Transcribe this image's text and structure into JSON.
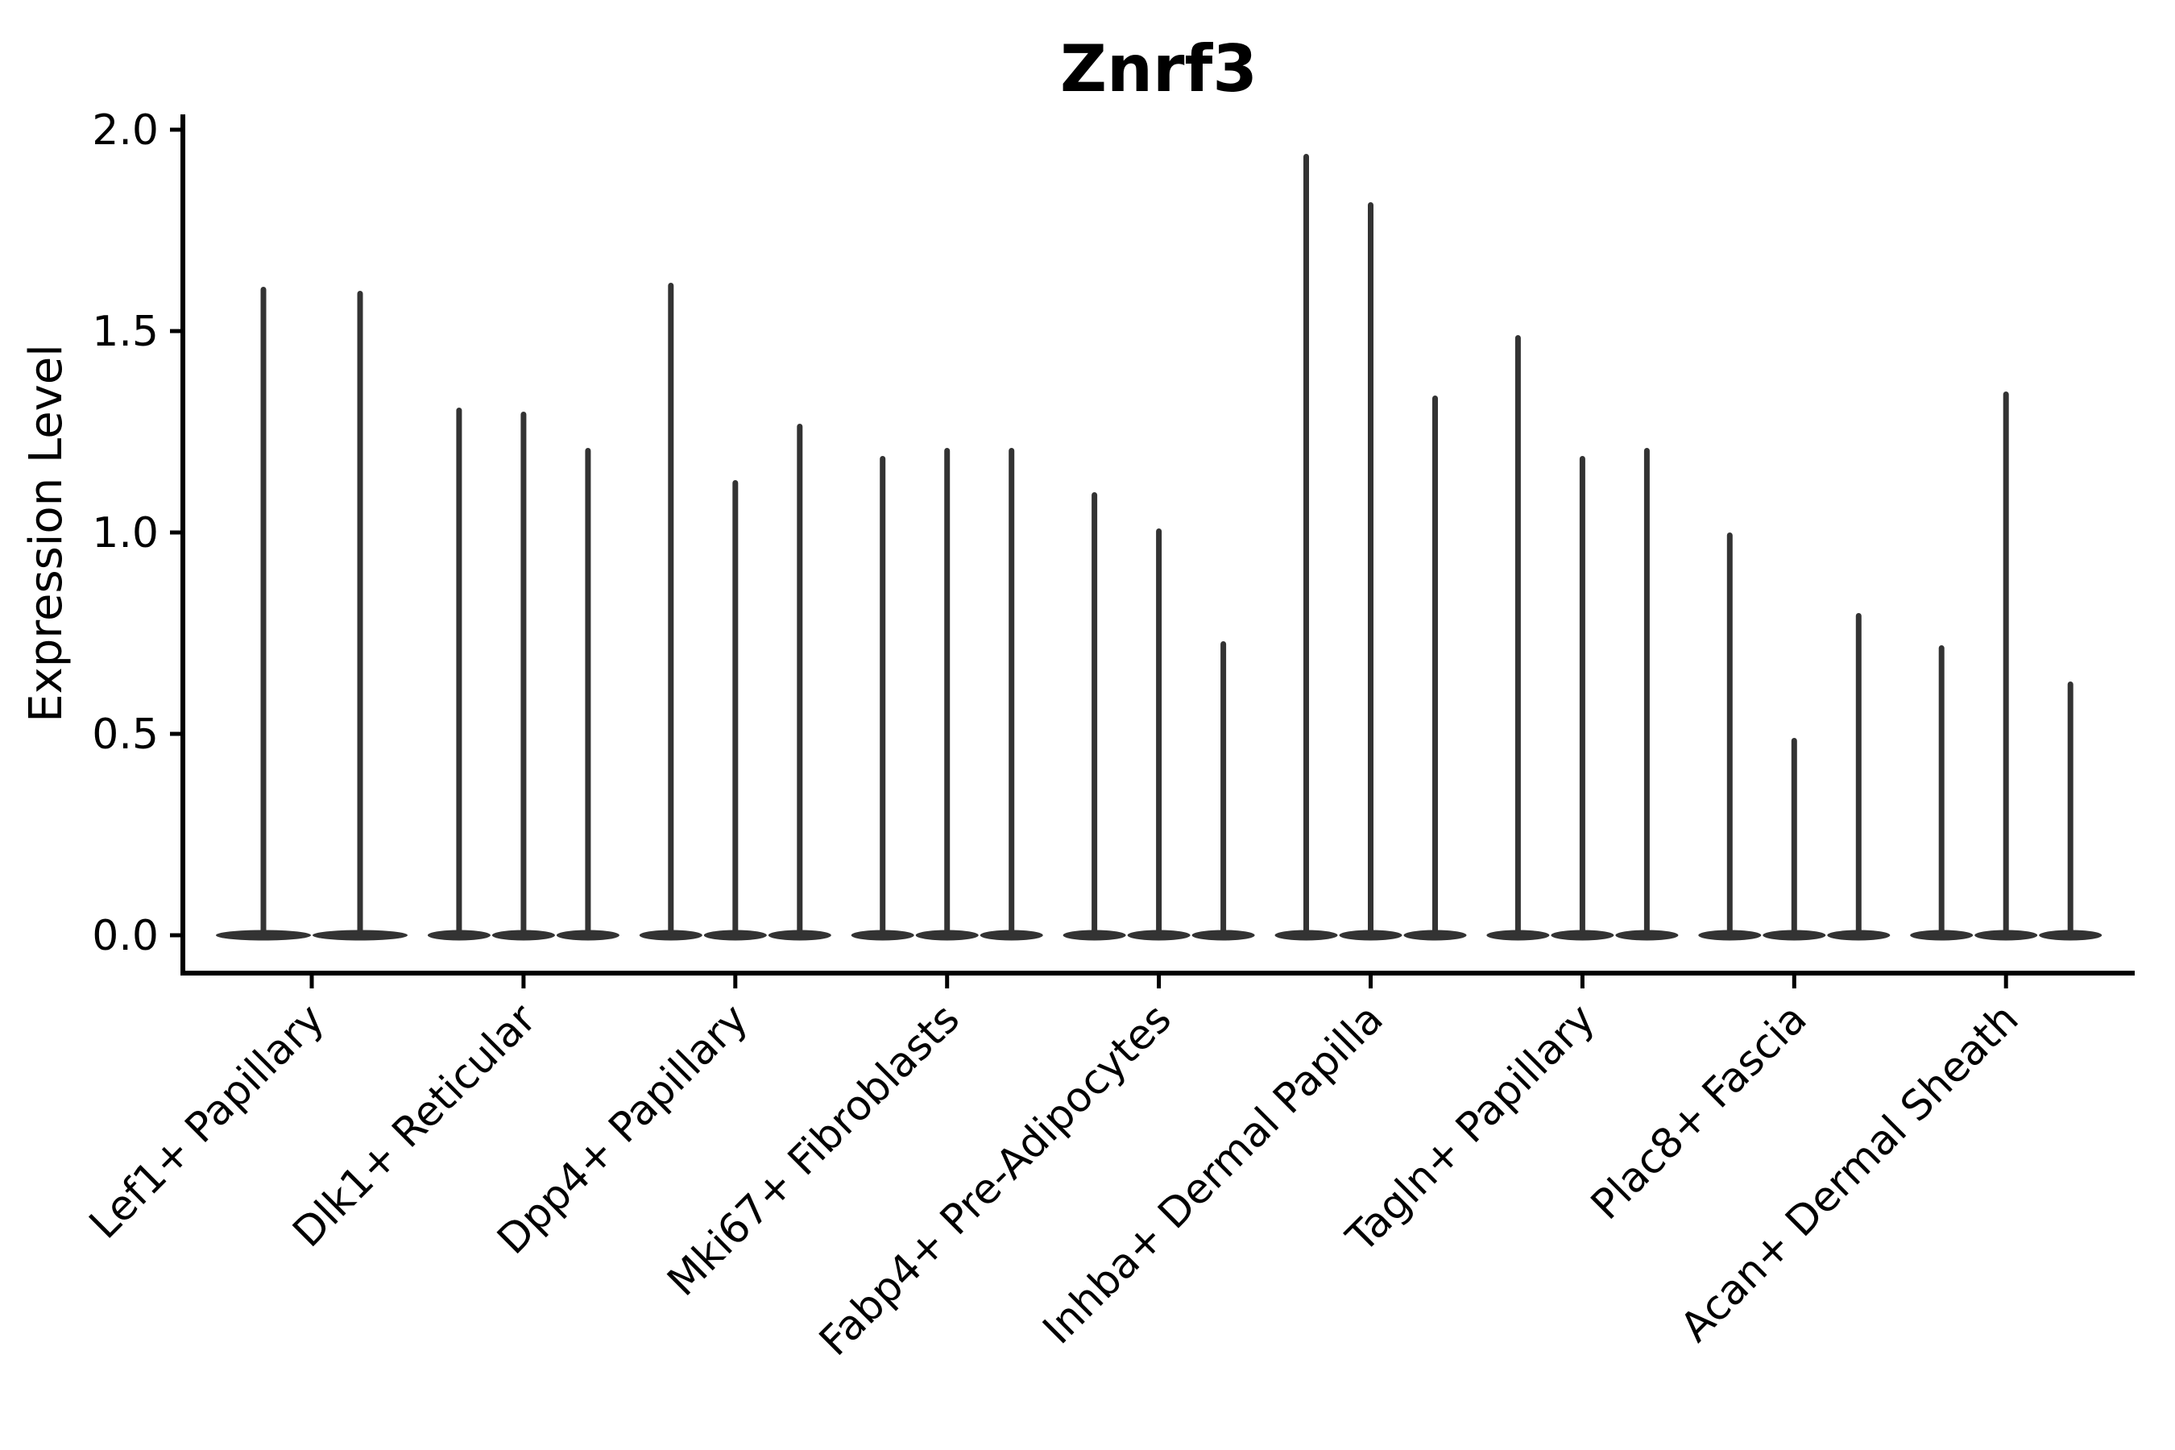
{
  "chart_data": {
    "type": "violin",
    "title": "Znrf3",
    "ylabel": "Expression Level",
    "xlabel": "",
    "ylim": [
      -0.09,
      2.09
    ],
    "yticks": [
      {
        "value": 0.0,
        "label": "0.0"
      },
      {
        "value": 0.5,
        "label": "0.5"
      },
      {
        "value": 1.0,
        "label": "1.0"
      },
      {
        "value": 1.5,
        "label": "1.5"
      },
      {
        "value": 2.0,
        "label": "2.0"
      }
    ],
    "categories": [
      "Lef1+ Papillary",
      "Dlk1+ Reticular",
      "Dpp4+ Papillary",
      "Mki67+ Fibroblasts",
      "Fabp4+ Pre-Adipocytes",
      "Inhba+ Dermal Papilla",
      "Tagln+ Papillary",
      "Plac8+ Fascia",
      "Acan+ Dermal Sheath"
    ],
    "groups": [
      {
        "category": "Lef1+ Papillary",
        "violin_maxima": [
          1.61,
          1.6
        ]
      },
      {
        "category": "Dlk1+ Reticular",
        "violin_maxima": [
          1.31,
          1.3,
          1.21
        ]
      },
      {
        "category": "Dpp4+ Papillary",
        "violin_maxima": [
          1.62,
          1.13,
          1.27
        ]
      },
      {
        "category": "Mki67+ Fibroblasts",
        "violin_maxima": [
          1.19,
          1.21,
          1.21
        ]
      },
      {
        "category": "Fabp4+ Pre-Adipocytes",
        "violin_maxima": [
          1.1,
          1.01,
          0.73
        ]
      },
      {
        "category": "Inhba+ Dermal Papilla",
        "violin_maxima": [
          1.94,
          1.82,
          1.34
        ]
      },
      {
        "category": "Tagln+ Papillary",
        "violin_maxima": [
          1.49,
          1.19,
          1.21
        ]
      },
      {
        "category": "Plac8+ Fascia",
        "violin_maxima": [
          1.0,
          0.49,
          0.8
        ]
      },
      {
        "category": "Acan+ Dermal Sheath",
        "violin_maxima": [
          0.72,
          1.35,
          0.63
        ]
      }
    ],
    "shape_note": "Each violin is a needle shape: density mass concentrated at 0 (flat wide base) with a thin spike rising to the listed maximum expression value.",
    "grid": false,
    "legend_position": "none",
    "colors": {
      "violin": "#333333",
      "axis": "#000000",
      "text": "#000000",
      "background": "#ffffff"
    }
  }
}
